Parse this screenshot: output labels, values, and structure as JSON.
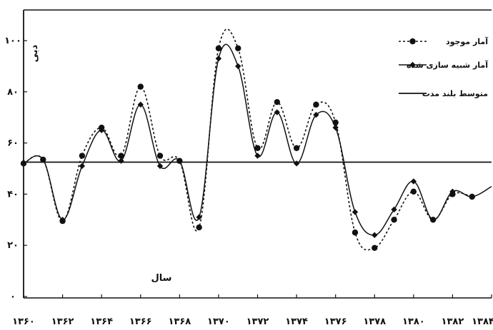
{
  "chart_data": {
    "type": "line",
    "title": "",
    "xlabel": "سال",
    "ylabel": "دبی",
    "xlim": [
      1360,
      1384
    ],
    "ylim": [
      0,
      105
    ],
    "x_ticks": [
      1360,
      1362,
      1364,
      1366,
      1368,
      1370,
      1372,
      1374,
      1376,
      1378,
      1380,
      1382,
      1384
    ],
    "x_tick_labels": [
      "۱۳۶۰",
      "۱۳۶۲",
      "۱۳۶۴",
      "۱۳۶۶",
      "۱۳۶۸",
      "۱۳۷۰",
      "۱۳۷۲",
      "۱۳۷۴",
      "۱۳۷۶",
      "۱۳۷۸",
      "۱۳۸۰",
      "۱۳۸۲",
      "۱۳۸۴"
    ],
    "y_ticks": [
      0,
      20,
      40,
      60,
      80,
      100
    ],
    "y_tick_labels": [
      "۰",
      "۲۰",
      "۴۰",
      "۶۰",
      "۸۰",
      "۱۰۰"
    ],
    "grid": false,
    "legend_position": "top-right",
    "series": [
      {
        "name": "آمار موجود",
        "style": "dotted-circle",
        "color": "#111111",
        "x": [
          1360,
          1361,
          1362,
          1363,
          1364,
          1365,
          1366,
          1367,
          1368,
          1369,
          1370,
          1371,
          1372,
          1373,
          1374,
          1375,
          1376,
          1377,
          1378,
          1379,
          1380,
          1381,
          1382,
          1383
        ],
        "y": [
          52,
          53.5,
          29.5,
          55,
          66,
          55,
          82,
          55,
          53,
          27,
          97,
          97,
          58,
          76,
          58,
          75,
          68,
          25,
          19,
          30,
          41,
          30,
          40,
          39
        ]
      },
      {
        "name": "آمار شبیه سازی شده",
        "style": "solid-diamond",
        "color": "#111111",
        "x": [
          1360,
          1361,
          1362,
          1363,
          1364,
          1365,
          1366,
          1367,
          1368,
          1369,
          1370,
          1371,
          1372,
          1373,
          1374,
          1375,
          1376,
          1377,
          1378,
          1379,
          1380,
          1381,
          1382,
          1383
        ],
        "y": [
          52,
          53.5,
          30,
          51,
          65,
          53,
          75,
          51,
          53,
          31,
          93,
          90,
          55,
          72,
          52,
          71,
          66,
          33,
          24,
          34,
          45,
          30,
          41,
          39
        ]
      },
      {
        "name": "متوسط بلند مدت",
        "style": "solid",
        "color": "#111111",
        "x": [
          1360,
          1384
        ],
        "y": [
          52.5,
          52.5
        ]
      }
    ]
  },
  "legend": {
    "items": [
      {
        "label": "آمار موجود"
      },
      {
        "label": "آمار شبیه سازی شده"
      },
      {
        "label": "متوسط بلند مدت"
      }
    ]
  },
  "texts": {
    "ylabel": "دبی",
    "xlabel": "سال"
  }
}
